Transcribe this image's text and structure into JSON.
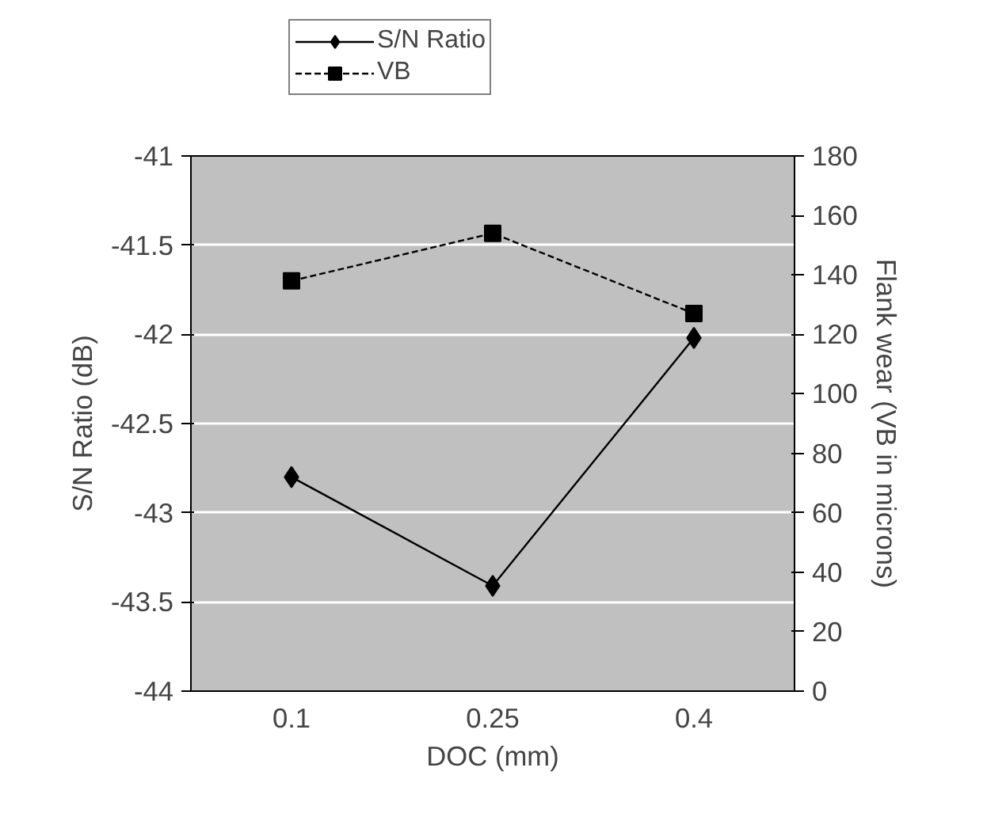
{
  "chart_data": {
    "type": "line",
    "xlabel": "DOC (mm)",
    "ylabel": "S/N Ratio (dB)",
    "y2label": "Flank wear (VB in microns)",
    "categories": [
      "0.1",
      "0.25",
      "0.4"
    ],
    "series": [
      {
        "name": "S/N Ratio",
        "color": "#000000",
        "values": [
          -42.8,
          -43.41,
          -42.02
        ],
        "marker": "diamond",
        "line_style": "solid"
      },
      {
        "name": "VB",
        "color": "#000000",
        "values": [
          138,
          154,
          127
        ],
        "axis": "y2",
        "marker": "square",
        "line_style": "dashed"
      }
    ],
    "ylim": [
      -44,
      -41
    ],
    "yticks": [
      -44,
      -43.5,
      -43,
      -42.5,
      -42,
      -41.5,
      -41
    ],
    "y2lim": [
      0,
      180
    ],
    "y2ticks": [
      0,
      20,
      40,
      60,
      80,
      100,
      120,
      140,
      160,
      180
    ],
    "grid": "y",
    "legend": "top"
  }
}
